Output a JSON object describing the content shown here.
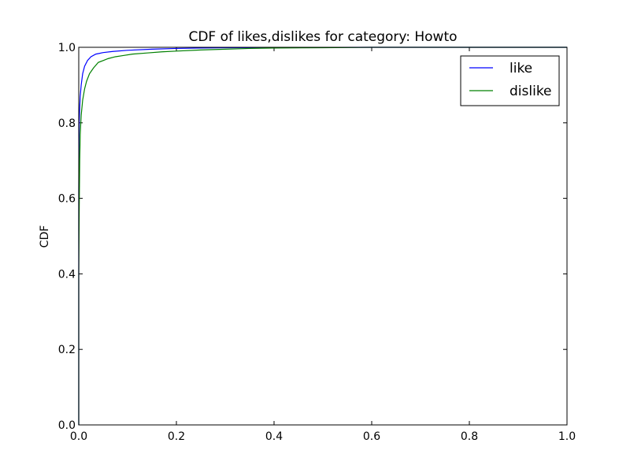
{
  "chart_data": {
    "type": "line",
    "title": "CDF of likes,dislikes for category: Howto",
    "xlabel": "",
    "ylabel": "CDF",
    "xlim": [
      0.0,
      1.0
    ],
    "ylim": [
      0.0,
      1.0
    ],
    "x_ticks": [
      "0.0",
      "0.2",
      "0.4",
      "0.6",
      "0.8",
      "1.0"
    ],
    "y_ticks": [
      "0.0",
      "0.2",
      "0.4",
      "0.6",
      "0.8",
      "1.0"
    ],
    "grid": false,
    "legend_position": "top-right",
    "series": [
      {
        "name": "like",
        "color": "#0000ff",
        "x": [
          0.0,
          0.0005,
          0.001,
          0.002,
          0.003,
          0.005,
          0.008,
          0.012,
          0.018,
          0.025,
          0.035,
          0.05,
          0.07,
          0.1,
          0.15,
          0.2,
          0.25,
          0.3,
          0.4,
          0.6
        ],
        "y": [
          0.62,
          0.75,
          0.8,
          0.84,
          0.87,
          0.9,
          0.93,
          0.95,
          0.965,
          0.975,
          0.982,
          0.986,
          0.989,
          0.992,
          0.995,
          0.997,
          0.998,
          0.999,
          0.9995,
          1.0
        ]
      },
      {
        "name": "dislike",
        "color": "#008000",
        "x": [
          0.0,
          0.001,
          0.002,
          0.003,
          0.005,
          0.008,
          0.012,
          0.016,
          0.022,
          0.03,
          0.04,
          0.05,
          0.06,
          0.075,
          0.09,
          0.11,
          0.14,
          0.17,
          0.2,
          0.25,
          0.3,
          0.35,
          0.4,
          0.5,
          0.6
        ],
        "y": [
          0.4,
          0.58,
          0.7,
          0.77,
          0.82,
          0.86,
          0.89,
          0.91,
          0.93,
          0.945,
          0.96,
          0.965,
          0.97,
          0.975,
          0.978,
          0.982,
          0.985,
          0.988,
          0.99,
          0.993,
          0.995,
          0.997,
          0.998,
          0.999,
          1.0
        ]
      }
    ]
  }
}
